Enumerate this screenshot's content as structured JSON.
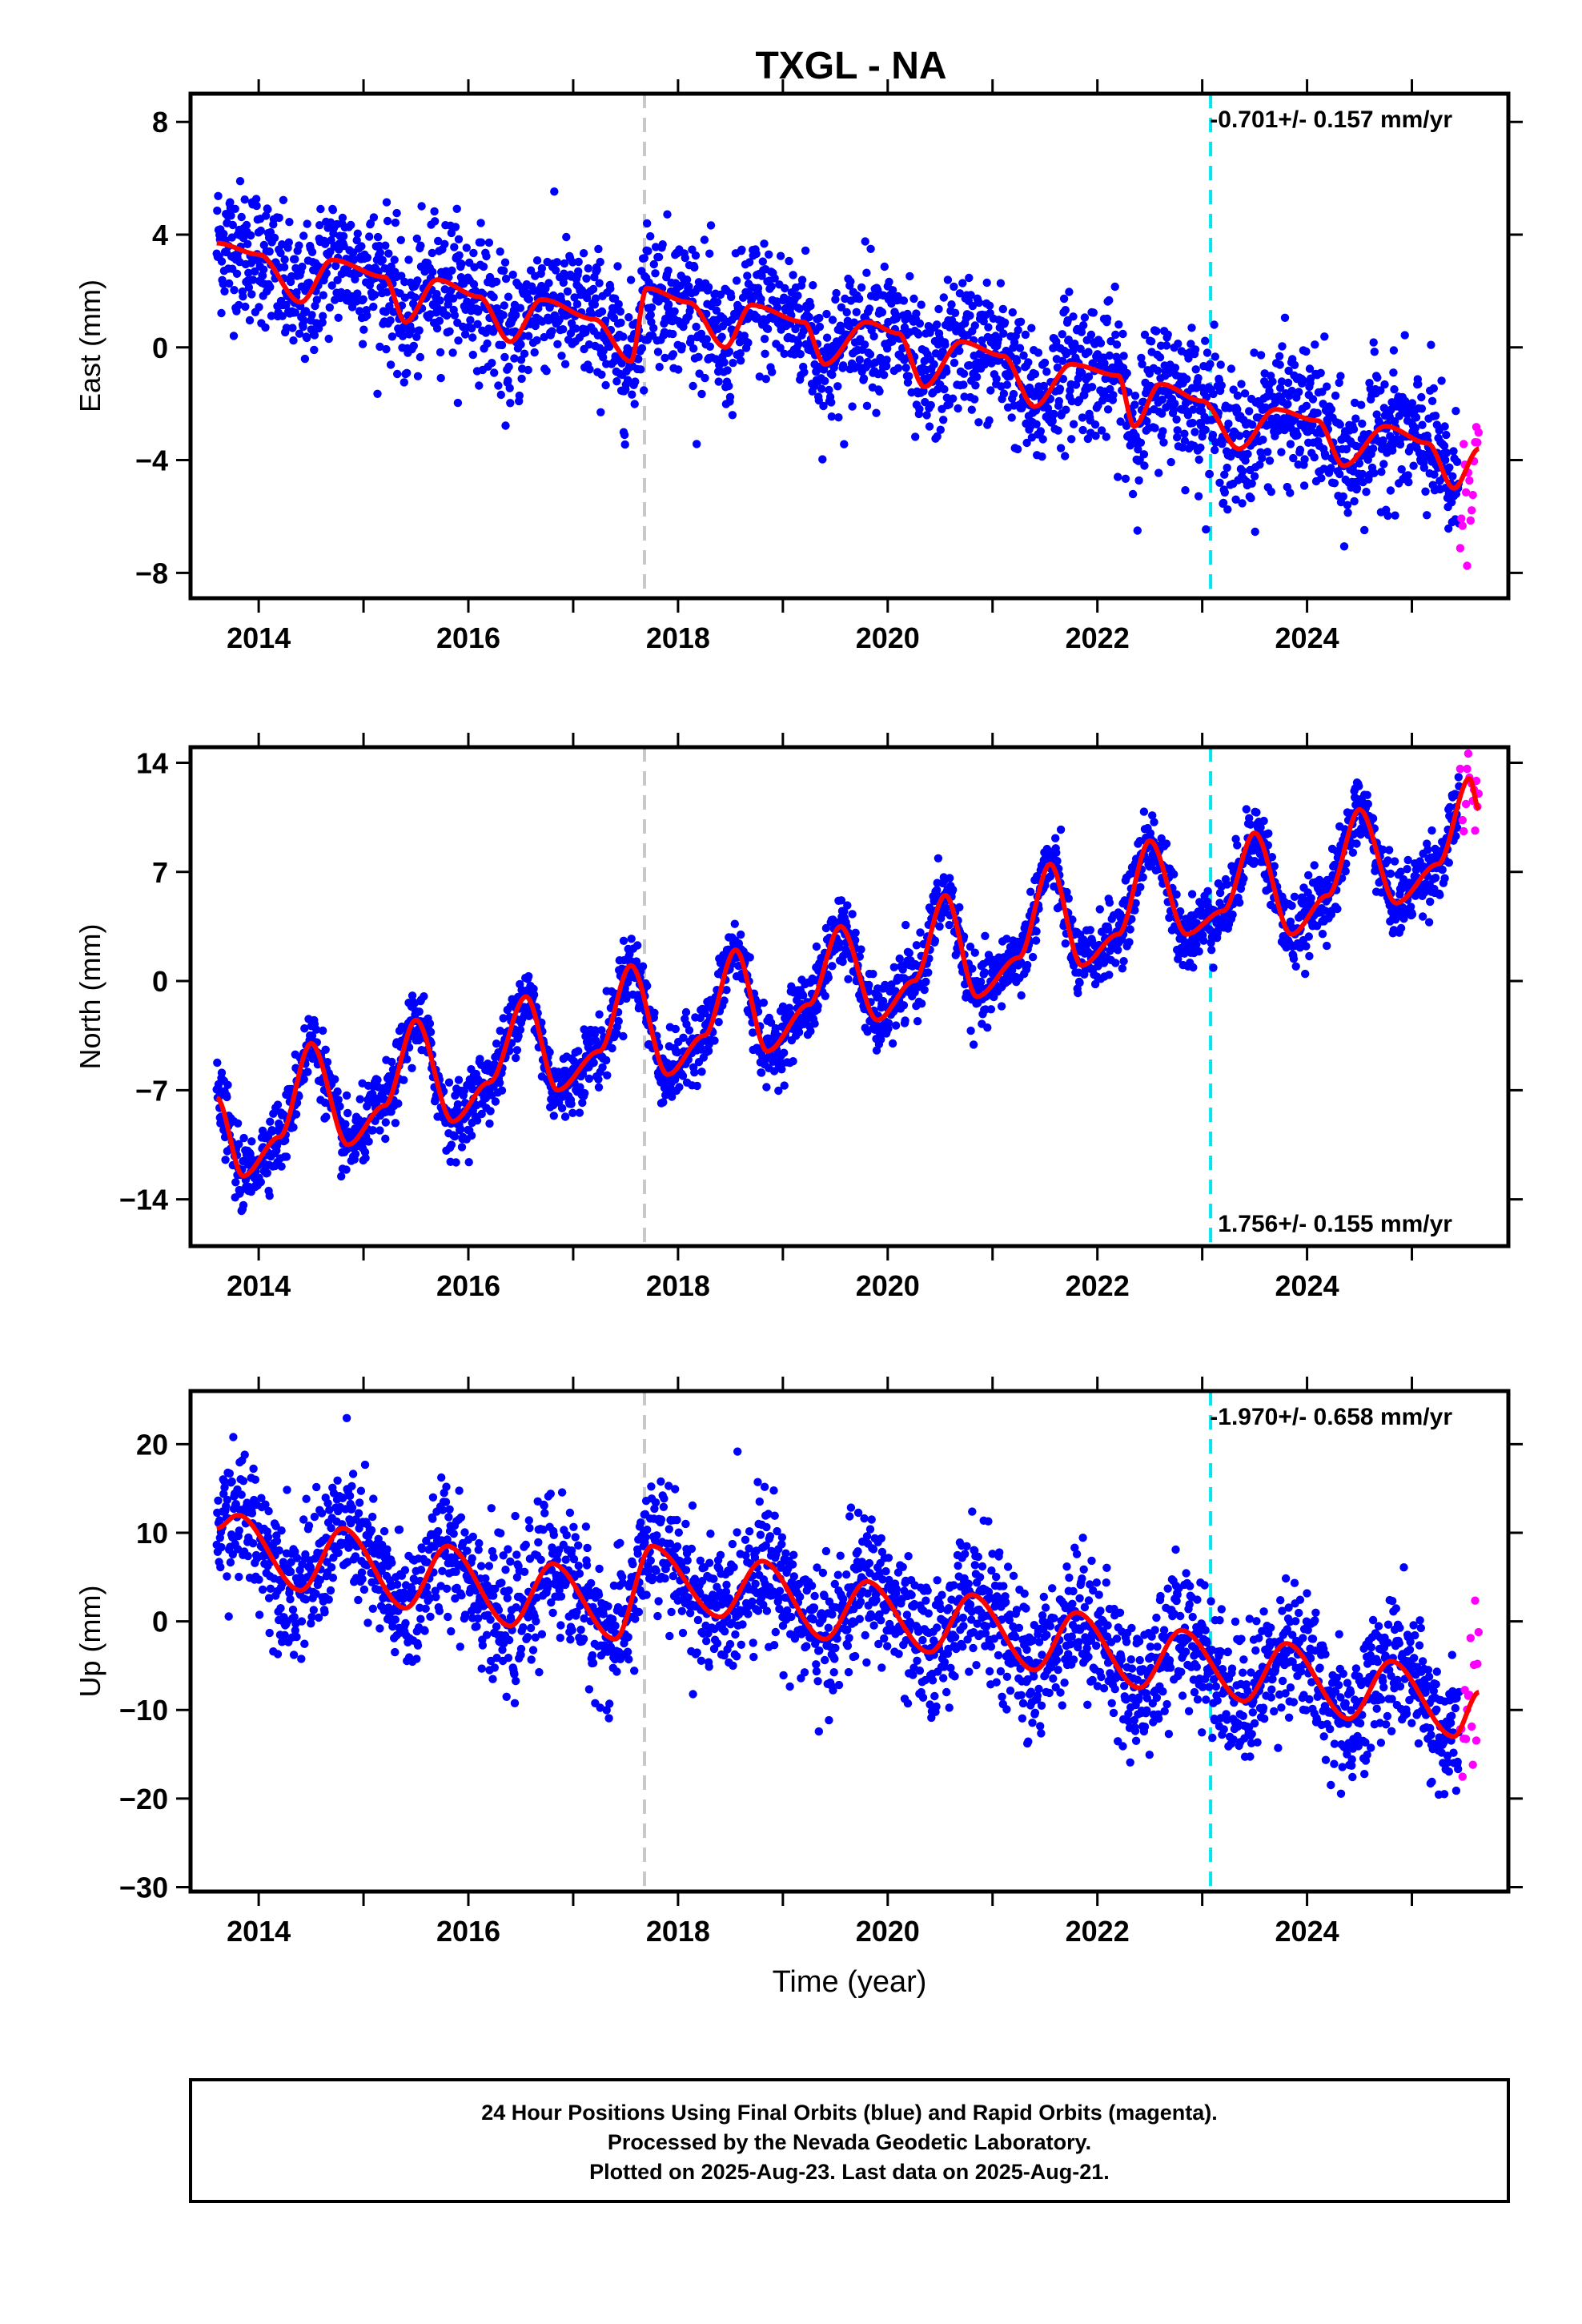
{
  "title": "TXGL - NA",
  "footer": {
    "line1": "24 Hour Positions Using Final Orbits (blue) and Rapid Orbits (magenta).",
    "line2": "Processed by the Nevada Geodetic Laboratory.",
    "line3": "Plotted on 2025-Aug-23. Last data on 2025-Aug-21."
  },
  "colors": {
    "final_orbits": "#0000ff",
    "rapid_orbits": "#ff00ff",
    "model": "#ff0000",
    "antenna_change": "#c8c8c8",
    "equipment_change": "#00e5ee"
  },
  "chart_data": [
    {
      "type": "scatter",
      "panel": "east",
      "xlabel": "",
      "ylabel": "East (mm)",
      "xlim": [
        2013.35,
        2025.92
      ],
      "ylim": [
        -8.9,
        9.0
      ],
      "x_ticks": [
        2014,
        2016,
        2018,
        2020,
        2022,
        2024
      ],
      "y_ticks": [
        -8,
        -4,
        0,
        4,
        8
      ],
      "velocity_label": "-0.701+/- 0.157 mm/yr",
      "velocity_label_position": "top-right",
      "data_start": 2013.6,
      "final_end": 2025.45,
      "rapid_end": 2025.64,
      "offset": 0.0,
      "trend": -0.701,
      "annual_amplitude": 1.2,
      "annual_phase_peak": 0.75,
      "noise_sd": 1.2,
      "curve_anchor": [
        [
          2013.6,
          3.7
        ],
        [
          2014.0,
          3.3
        ],
        [
          2014.4,
          1.6
        ],
        [
          2014.7,
          3.1
        ],
        [
          2015.2,
          2.5
        ],
        [
          2015.4,
          0.9
        ],
        [
          2015.7,
          2.4
        ],
        [
          2016.1,
          1.8
        ],
        [
          2016.4,
          0.2
        ],
        [
          2016.7,
          1.7
        ],
        [
          2017.2,
          1.0
        ],
        [
          2017.55,
          -0.5
        ],
        [
          2017.7,
          2.1
        ],
        [
          2018.1,
          1.6
        ],
        [
          2018.45,
          0.0
        ],
        [
          2018.7,
          1.5
        ],
        [
          2019.2,
          0.9
        ],
        [
          2019.4,
          -0.6
        ],
        [
          2019.8,
          0.9
        ],
        [
          2020.1,
          0.5
        ],
        [
          2020.35,
          -1.4
        ],
        [
          2020.7,
          0.2
        ],
        [
          2021.1,
          -0.3
        ],
        [
          2021.4,
          -2.1
        ],
        [
          2021.75,
          -0.6
        ],
        [
          2022.2,
          -1.0
        ],
        [
          2022.35,
          -2.8
        ],
        [
          2022.6,
          -1.3
        ],
        [
          2023.0,
          -1.9
        ],
        [
          2023.35,
          -3.6
        ],
        [
          2023.7,
          -2.2
        ],
        [
          2024.1,
          -2.6
        ],
        [
          2024.35,
          -4.2
        ],
        [
          2024.75,
          -2.8
        ],
        [
          2025.15,
          -3.4
        ],
        [
          2025.4,
          -5.0
        ],
        [
          2025.64,
          -3.6
        ]
      ],
      "vertical_lines": [
        {
          "x": 2017.68,
          "kind": "antenna_change"
        },
        {
          "x": 2023.08,
          "kind": "equipment_change"
        }
      ]
    },
    {
      "type": "scatter",
      "panel": "north",
      "xlabel": "",
      "ylabel": "North (mm)",
      "xlim": [
        2013.35,
        2025.92
      ],
      "ylim": [
        -17.0,
        15.0
      ],
      "x_ticks": [
        2014,
        2016,
        2018,
        2020,
        2022,
        2024
      ],
      "y_ticks": [
        -14,
        -7,
        0,
        7,
        14
      ],
      "velocity_label": "1.756+/- 0.155 mm/yr",
      "velocity_label_position": "bottom-right",
      "data_start": 2013.6,
      "final_end": 2025.45,
      "rapid_end": 2025.64,
      "offset": -1.5,
      "trend": 1.756,
      "annual_amplitude": 4.0,
      "annual_phase_peak": 0.55,
      "noise_sd": 1.1,
      "curve_anchor": [
        [
          2013.6,
          -7.5
        ],
        [
          2013.85,
          -12.5
        ],
        [
          2014.2,
          -10.0
        ],
        [
          2014.5,
          -4.0
        ],
        [
          2014.85,
          -10.5
        ],
        [
          2015.2,
          -8.0
        ],
        [
          2015.5,
          -2.5
        ],
        [
          2015.85,
          -9.0
        ],
        [
          2016.2,
          -6.5
        ],
        [
          2016.55,
          -1.0
        ],
        [
          2016.85,
          -7.0
        ],
        [
          2017.25,
          -4.5
        ],
        [
          2017.55,
          1.0
        ],
        [
          2017.9,
          -6.0
        ],
        [
          2018.25,
          -3.5
        ],
        [
          2018.55,
          2.0
        ],
        [
          2018.85,
          -4.5
        ],
        [
          2019.25,
          -1.5
        ],
        [
          2019.55,
          3.5
        ],
        [
          2019.9,
          -2.5
        ],
        [
          2020.25,
          0.0
        ],
        [
          2020.55,
          5.5
        ],
        [
          2020.85,
          -1.0
        ],
        [
          2021.25,
          1.5
        ],
        [
          2021.55,
          7.5
        ],
        [
          2021.85,
          1.0
        ],
        [
          2022.2,
          3.0
        ],
        [
          2022.5,
          9.0
        ],
        [
          2022.85,
          3.0
        ],
        [
          2023.2,
          4.5
        ],
        [
          2023.5,
          9.5
        ],
        [
          2023.85,
          3.0
        ],
        [
          2024.2,
          5.5
        ],
        [
          2024.5,
          11.0
        ],
        [
          2024.85,
          5.0
        ],
        [
          2025.25,
          7.5
        ],
        [
          2025.55,
          13.0
        ],
        [
          2025.64,
          11.0
        ]
      ],
      "vertical_lines": [
        {
          "x": 2017.68,
          "kind": "antenna_change"
        },
        {
          "x": 2023.08,
          "kind": "equipment_change"
        }
      ]
    },
    {
      "type": "scatter",
      "panel": "up",
      "xlabel": "Time (year)",
      "ylabel": "Up (mm)",
      "xlim": [
        2013.35,
        2025.92
      ],
      "ylim": [
        -30.5,
        26.0
      ],
      "x_ticks": [
        2014,
        2016,
        2018,
        2020,
        2022,
        2024
      ],
      "y_ticks": [
        -30,
        -20,
        -10,
        0,
        10,
        20
      ],
      "velocity_label": "-1.970+/- 0.658 mm/yr",
      "velocity_label_position": "top-right",
      "data_start": 2013.6,
      "final_end": 2025.45,
      "rapid_end": 2025.64,
      "offset": 3.0,
      "trend": -1.97,
      "annual_amplitude": 4.0,
      "annual_phase_peak": 0.8,
      "noise_sd": 3.8,
      "curve_anchor": [
        [
          2013.6,
          10.5
        ],
        [
          2013.8,
          12.0
        ],
        [
          2014.4,
          3.5
        ],
        [
          2014.8,
          10.5
        ],
        [
          2015.4,
          1.5
        ],
        [
          2015.8,
          8.5
        ],
        [
          2016.4,
          -0.5
        ],
        [
          2016.8,
          6.5
        ],
        [
          2017.4,
          -2.0
        ],
        [
          2017.75,
          8.5
        ],
        [
          2018.4,
          0.5
        ],
        [
          2018.8,
          6.8
        ],
        [
          2019.4,
          -2.0
        ],
        [
          2019.8,
          4.5
        ],
        [
          2020.4,
          -3.5
        ],
        [
          2020.8,
          3.0
        ],
        [
          2021.4,
          -5.5
        ],
        [
          2021.8,
          1.0
        ],
        [
          2022.4,
          -7.5
        ],
        [
          2022.8,
          -1.0
        ],
        [
          2023.4,
          -9.0
        ],
        [
          2023.8,
          -2.5
        ],
        [
          2024.4,
          -11.0
        ],
        [
          2024.8,
          -4.5
        ],
        [
          2025.4,
          -13.0
        ],
        [
          2025.64,
          -8.0
        ]
      ],
      "vertical_lines": [
        {
          "x": 2017.68,
          "kind": "antenna_change"
        },
        {
          "x": 2023.08,
          "kind": "equipment_change"
        }
      ]
    }
  ]
}
